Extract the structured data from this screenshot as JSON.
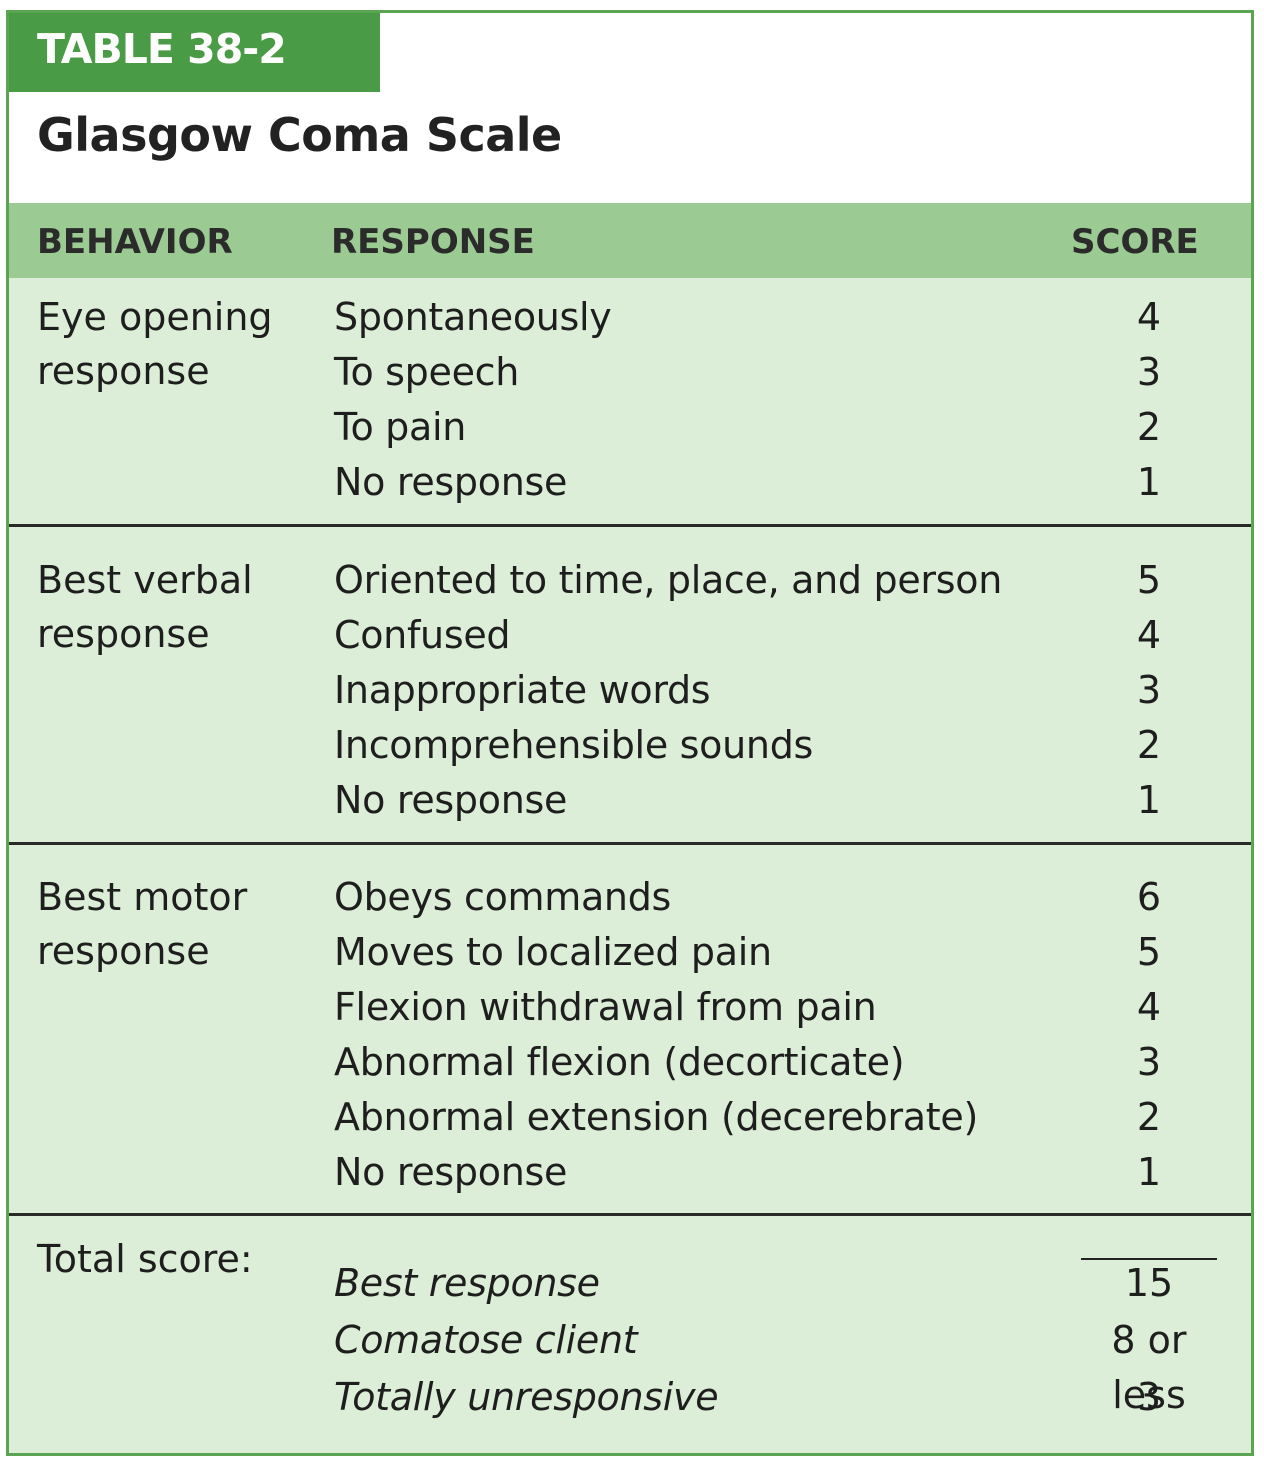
{
  "table_label": "TABLE 38-2",
  "title": "Glasgow Coma Scale",
  "headers": {
    "behavior": "BEHAVIOR",
    "response": "RESPONSE",
    "score": "SCORE"
  },
  "groups": [
    {
      "behavior": [
        "Eye opening",
        "response"
      ],
      "rows": [
        {
          "response": "Spontaneously",
          "score": "4"
        },
        {
          "response": "To speech",
          "score": "3"
        },
        {
          "response": "To pain",
          "score": "2"
        },
        {
          "response": "No response",
          "score": "1"
        }
      ]
    },
    {
      "behavior": [
        "Best verbal",
        "response"
      ],
      "rows": [
        {
          "response": "Oriented to time, place, and person",
          "score": "5"
        },
        {
          "response": "Confused",
          "score": "4"
        },
        {
          "response": "Inappropriate words",
          "score": "3"
        },
        {
          "response": "Incomprehensible sounds",
          "score": "2"
        },
        {
          "response": "No response",
          "score": "1"
        }
      ]
    },
    {
      "behavior": [
        "Best motor",
        "response"
      ],
      "rows": [
        {
          "response": "Obeys commands",
          "score": "6"
        },
        {
          "response": "Moves to localized pain",
          "score": "5"
        },
        {
          "response": "Flexion withdrawal from pain",
          "score": "4"
        },
        {
          "response": "Abnormal flexion (decorticate)",
          "score": "3"
        },
        {
          "response": "Abnormal extension (decerebrate)",
          "score": "2"
        },
        {
          "response": "No response",
          "score": "1"
        }
      ]
    },
    {
      "behavior": [
        "Total score:"
      ],
      "italic": true,
      "rows": [
        {
          "response": "Best response",
          "score": "15"
        },
        {
          "response": "Comatose client",
          "score": "8 or less"
        },
        {
          "response": "Totally unresponsive",
          "score": "3"
        }
      ]
    }
  ]
}
